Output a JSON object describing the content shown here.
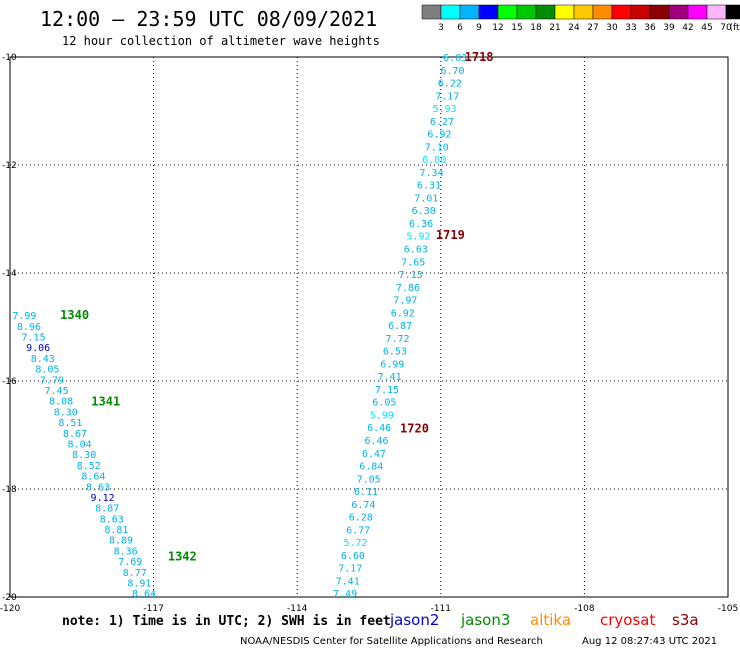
{
  "header": {
    "title": "12:00 – 23:59 UTC 08/09/2021",
    "subtitle": "12 hour collection of altimeter wave heights"
  },
  "legend_scale": {
    "colors": [
      "#7f7f7f",
      "#00ffff",
      "#00b4ff",
      "#0000ff",
      "#00ff00",
      "#00c800",
      "#008c00",
      "#ffff00",
      "#ffc800",
      "#ff8c00",
      "#ff0000",
      "#c80000",
      "#8b0000",
      "#a0007f",
      "#ff00ff",
      "#ffb4ff",
      "#000000"
    ],
    "labels": [
      "3",
      "6",
      "9",
      "12",
      "15",
      "18",
      "21",
      "24",
      "27",
      "30",
      "33",
      "36",
      "39",
      "42",
      "45",
      "70"
    ],
    "unit": "(ft)"
  },
  "footer": {
    "note": "note:  1) Time is in UTC; 2) SWH is in feet",
    "satellites": [
      {
        "name": "jason2",
        "color": "#0000cc"
      },
      {
        "name": "jason3",
        "color": "#008c00"
      },
      {
        "name": "altika",
        "color": "#ff8c00"
      },
      {
        "name": "cryosat",
        "color": "#ff0000"
      },
      {
        "name": "s3a",
        "color": "#8b0000"
      }
    ],
    "credit": "NOAA/NESDIS Center for Satellite Applications and Research",
    "timestamp": "Aug 12 08:27:43 UTC 2021"
  },
  "chart_data": {
    "type": "scatter",
    "xlim": [
      -120,
      -105
    ],
    "ylim": [
      -20,
      -10
    ],
    "x_ticks": [
      -120,
      -117,
      -114,
      -111,
      -108,
      -105
    ],
    "x_tick_labels": [
      "-120",
      "-117",
      "-114",
      "-111",
      "-108",
      "-105"
    ],
    "y_ticks": [
      -10,
      -12,
      -14,
      -16,
      -18,
      -20
    ],
    "y_tick_labels": [
      "-10",
      "-12",
      "-14",
      "-16",
      "-18",
      "-20"
    ],
    "grid": true,
    "tracks": [
      {
        "satellite": "jason3",
        "color": "#00b4e6",
        "start": [
          -119.7,
          -14.78
        ],
        "end": [
          -117.2,
          -19.93
        ],
        "values": [
          "7.99",
          "8.96",
          "7.15",
          "9.06",
          "8.43",
          "8.05",
          "7.79",
          "7.45",
          "8.08",
          "8.30",
          "8.51",
          "8.67",
          "8.04",
          "8.30",
          "8.52",
          "8.64",
          "8.63",
          "9.12",
          "8.87",
          "8.63",
          "8.81",
          "8.89",
          "8.36",
          "7.69",
          "8.77",
          "8.91",
          "8.64"
        ],
        "value_colors": {
          "9.06": "#0000cc",
          "9.12": "#0000cc"
        }
      },
      {
        "satellite": "s3a",
        "color": "#00b4e6",
        "start": [
          -110.7,
          -10.0
        ],
        "end": [
          -113.0,
          -19.93
        ],
        "values": [
          "6.03",
          "6.70",
          "6.22",
          "7.17",
          "5.93",
          "6.27",
          "6.92",
          "7.10",
          "6.00",
          "7.34",
          "6.31",
          "7.01",
          "6.30",
          "6.36",
          "5.92",
          "6.63",
          "7.65",
          "7.13",
          "7.86",
          "7.97",
          "6.92",
          "6.87",
          "7.72",
          "6.53",
          "6.99",
          "7.41",
          "7.15",
          "6.05",
          "5.99",
          "6.46",
          "6.46",
          "6.47",
          "6.84",
          "7.05",
          "6.11",
          "6.74",
          "6.28",
          "6.77",
          "5.72",
          "6.60",
          "7.17",
          "7.41",
          "7.49"
        ],
        "value_colors": {
          "5.93": "#00e6ff",
          "6.00": "#00e6ff",
          "5.92": "#00e6ff",
          "5.99": "#00e6ff",
          "5.72": "#00e6ff"
        }
      }
    ],
    "pass_labels": [
      {
        "text": "1340",
        "x": -118.65,
        "y": -14.78,
        "color": "#008c00"
      },
      {
        "text": "1341",
        "x": -118.0,
        "y": -16.38,
        "color": "#008c00"
      },
      {
        "text": "1342",
        "x": -116.4,
        "y": -19.25,
        "color": "#008c00"
      },
      {
        "text": "1718",
        "x": -110.2,
        "y": -10.0,
        "color": "#8b0000"
      },
      {
        "text": "1719",
        "x": -110.8,
        "y": -13.3,
        "color": "#8b0000"
      },
      {
        "text": "1720",
        "x": -111.55,
        "y": -16.88,
        "color": "#8b0000"
      }
    ]
  }
}
